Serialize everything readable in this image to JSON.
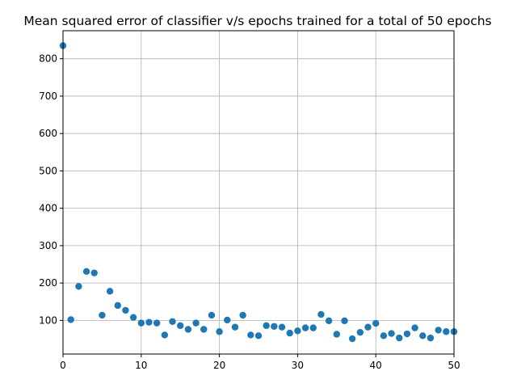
{
  "chart_data": {
    "type": "scatter",
    "title": "Mean squared error of classifier v/s epochs trained for a total of 50 epochs",
    "xlabel": "",
    "ylabel": "",
    "xlim": [
      0,
      50
    ],
    "ylim": [
      10,
      875
    ],
    "xticks": [
      "0",
      "10",
      "20",
      "30",
      "40",
      "50"
    ],
    "yticks": [
      "100",
      "200",
      "300",
      "400",
      "500",
      "600",
      "700",
      "800"
    ],
    "grid": true,
    "marker_color": "#1f77b4",
    "series": [
      {
        "x": [
          0,
          1,
          2,
          3,
          4,
          5,
          6,
          7,
          8,
          9,
          10,
          11,
          12,
          13,
          14,
          15,
          16,
          17,
          18,
          19,
          20,
          21,
          22,
          23,
          24,
          25,
          26,
          27,
          28,
          29,
          30,
          31,
          32,
          33,
          34,
          35,
          36,
          37,
          38,
          39,
          40,
          41,
          42,
          43,
          44,
          45,
          46,
          47,
          48,
          49,
          50
        ],
        "y": [
          835,
          102,
          191,
          231,
          227,
          114,
          178,
          140,
          127,
          108,
          93,
          95,
          93,
          61,
          97,
          86,
          76,
          93,
          76,
          114,
          70,
          101,
          82,
          114,
          61,
          59,
          86,
          84,
          82,
          66,
          72,
          80,
          80,
          116,
          99,
          63,
          99,
          51,
          68,
          82,
          92,
          59,
          65,
          53,
          64,
          80,
          59,
          53,
          74,
          70,
          70
        ]
      }
    ]
  }
}
